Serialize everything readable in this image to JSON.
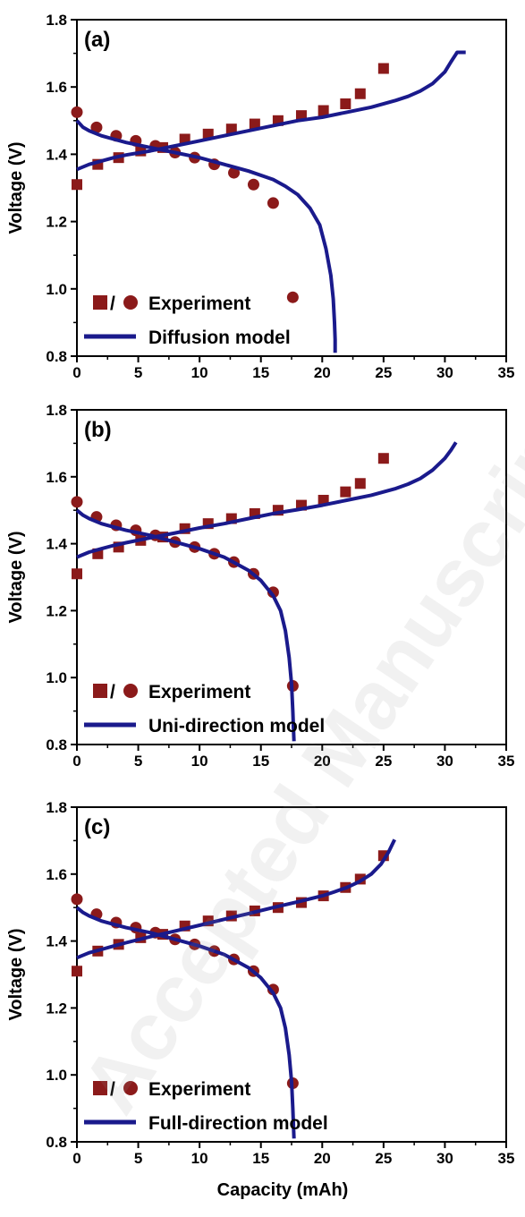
{
  "chart_data": [
    {
      "type": "scatter",
      "panel": "(a)",
      "xlim": [
        0,
        35
      ],
      "ylim": [
        0.8,
        1.8
      ],
      "xticks": [
        "0",
        "5",
        "10",
        "15",
        "20",
        "25",
        "30",
        "35"
      ],
      "yticks": [
        "0.8",
        "1.0",
        "1.2",
        "1.4",
        "1.6",
        "1.8"
      ],
      "ylabel": "Voltage (V)",
      "xlabel": "",
      "legend": {
        "placement": "bottom-left",
        "experiment_label": "Experiment",
        "model_label": "Diffusion model",
        "sep": "/"
      },
      "series": [
        {
          "kind": "exp-charge",
          "marker": "square",
          "color": "#8b1a1a",
          "x": [
            0,
            1.7,
            3.4,
            5.2,
            7.0,
            8.8,
            10.7,
            12.6,
            14.5,
            16.4,
            18.3,
            20.1,
            21.9,
            23.1,
            25.0
          ],
          "y": [
            1.31,
            1.37,
            1.39,
            1.41,
            1.42,
            1.445,
            1.46,
            1.475,
            1.49,
            1.5,
            1.515,
            1.53,
            1.55,
            1.58,
            1.655
          ]
        },
        {
          "kind": "exp-discharge",
          "marker": "circle",
          "color": "#8b1a1a",
          "x": [
            0,
            1.6,
            3.2,
            4.8,
            6.4,
            8.0,
            9.6,
            11.2,
            12.8,
            14.4,
            16.0,
            17.6
          ],
          "y": [
            1.525,
            1.48,
            1.455,
            1.44,
            1.425,
            1.405,
            1.39,
            1.37,
            1.345,
            1.31,
            1.255,
            0.975
          ]
        },
        {
          "kind": "model-charge",
          "color": "#1a1a8c",
          "x": [
            0,
            1,
            2,
            3,
            4,
            6,
            8,
            10,
            12,
            14,
            16,
            18,
            20,
            22,
            24,
            26,
            27,
            28,
            29,
            30,
            30.5,
            31,
            31.7
          ],
          "y": [
            1.355,
            1.37,
            1.38,
            1.39,
            1.398,
            1.41,
            1.425,
            1.44,
            1.455,
            1.47,
            1.485,
            1.5,
            1.51,
            1.525,
            1.54,
            1.56,
            1.572,
            1.588,
            1.61,
            1.645,
            1.675,
            1.703,
            1.703
          ]
        },
        {
          "kind": "model-discharge",
          "color": "#1a1a8c",
          "x": [
            0,
            0.5,
            1,
            2,
            3,
            4,
            6,
            8,
            10,
            12,
            14,
            16,
            17,
            18,
            19,
            19.8,
            20.3,
            20.7,
            20.9,
            21.0,
            21.05,
            21.05
          ],
          "y": [
            1.5,
            1.48,
            1.47,
            1.455,
            1.445,
            1.435,
            1.42,
            1.405,
            1.39,
            1.37,
            1.35,
            1.325,
            1.305,
            1.28,
            1.24,
            1.19,
            1.12,
            1.04,
            0.97,
            0.9,
            0.85,
            0.81
          ]
        }
      ]
    },
    {
      "type": "scatter",
      "panel": "(b)",
      "xlim": [
        0,
        35
      ],
      "ylim": [
        0.8,
        1.8
      ],
      "xticks": [
        "0",
        "5",
        "10",
        "15",
        "20",
        "25",
        "30",
        "35"
      ],
      "yticks": [
        "0.8",
        "1.0",
        "1.2",
        "1.4",
        "1.6",
        "1.8"
      ],
      "ylabel": "Voltage (V)",
      "xlabel": "",
      "legend": {
        "placement": "bottom-left",
        "experiment_label": "Experiment",
        "model_label": "Uni-direction model",
        "sep": "/"
      },
      "series": [
        {
          "kind": "exp-charge",
          "marker": "square",
          "color": "#8b1a1a",
          "x": [
            0,
            1.7,
            3.4,
            5.2,
            7.0,
            8.8,
            10.7,
            12.6,
            14.5,
            16.4,
            18.3,
            20.1,
            21.9,
            23.1,
            25.0
          ],
          "y": [
            1.31,
            1.37,
            1.39,
            1.41,
            1.42,
            1.445,
            1.46,
            1.475,
            1.49,
            1.5,
            1.515,
            1.53,
            1.555,
            1.58,
            1.655
          ]
        },
        {
          "kind": "exp-discharge",
          "marker": "circle",
          "color": "#8b1a1a",
          "x": [
            0,
            1.6,
            3.2,
            4.8,
            6.4,
            8.0,
            9.6,
            11.2,
            12.8,
            14.4,
            16.0,
            17.6
          ],
          "y": [
            1.525,
            1.48,
            1.455,
            1.44,
            1.425,
            1.405,
            1.39,
            1.37,
            1.345,
            1.31,
            1.255,
            0.975
          ]
        },
        {
          "kind": "model-charge",
          "color": "#1a1a8c",
          "x": [
            0,
            1,
            2,
            3,
            4,
            6,
            8,
            10,
            12,
            14,
            16,
            18,
            20,
            22,
            24,
            26,
            27,
            28,
            29,
            30,
            30.5,
            30.9
          ],
          "y": [
            1.36,
            1.375,
            1.385,
            1.395,
            1.403,
            1.418,
            1.432,
            1.447,
            1.46,
            1.475,
            1.49,
            1.502,
            1.515,
            1.53,
            1.545,
            1.565,
            1.578,
            1.595,
            1.62,
            1.655,
            1.68,
            1.703
          ]
        },
        {
          "kind": "model-discharge",
          "color": "#1a1a8c",
          "x": [
            0,
            0.5,
            1,
            2,
            3,
            4,
            6,
            8,
            10,
            12,
            14,
            15,
            16,
            16.6,
            17.0,
            17.3,
            17.5,
            17.6,
            17.65,
            17.7
          ],
          "y": [
            1.5,
            1.485,
            1.475,
            1.46,
            1.45,
            1.44,
            1.425,
            1.405,
            1.385,
            1.36,
            1.32,
            1.29,
            1.245,
            1.2,
            1.14,
            1.06,
            0.98,
            0.9,
            0.85,
            0.81
          ]
        }
      ]
    },
    {
      "type": "scatter",
      "panel": "(c)",
      "xlim": [
        0,
        35
      ],
      "ylim": [
        0.8,
        1.8
      ],
      "xticks": [
        "0",
        "5",
        "10",
        "15",
        "20",
        "25",
        "30",
        "35"
      ],
      "yticks": [
        "0.8",
        "1.0",
        "1.2",
        "1.4",
        "1.6",
        "1.8"
      ],
      "ylabel": "Voltage (V)",
      "xlabel": "Capacity (mAh)",
      "legend": {
        "placement": "bottom-left",
        "experiment_label": "Experiment",
        "model_label": "Full-direction model",
        "sep": "/"
      },
      "series": [
        {
          "kind": "exp-charge",
          "marker": "square",
          "color": "#8b1a1a",
          "x": [
            0,
            1.7,
            3.4,
            5.2,
            7.0,
            8.8,
            10.7,
            12.6,
            14.5,
            16.4,
            18.3,
            20.1,
            21.9,
            23.1,
            25.0
          ],
          "y": [
            1.31,
            1.37,
            1.39,
            1.41,
            1.42,
            1.445,
            1.46,
            1.475,
            1.49,
            1.5,
            1.515,
            1.535,
            1.56,
            1.585,
            1.655
          ]
        },
        {
          "kind": "exp-discharge",
          "marker": "circle",
          "color": "#8b1a1a",
          "x": [
            0,
            1.6,
            3.2,
            4.8,
            6.4,
            8.0,
            9.6,
            11.2,
            12.8,
            14.4,
            16.0,
            17.6
          ],
          "y": [
            1.525,
            1.48,
            1.455,
            1.44,
            1.425,
            1.405,
            1.39,
            1.37,
            1.345,
            1.31,
            1.255,
            0.975
          ]
        },
        {
          "kind": "model-charge",
          "color": "#1a1a8c",
          "x": [
            0,
            1,
            2,
            3,
            4,
            6,
            8,
            10,
            12,
            14,
            16,
            18,
            20,
            21,
            22,
            23,
            24,
            24.8,
            25.4,
            25.9
          ],
          "y": [
            1.35,
            1.365,
            1.375,
            1.385,
            1.395,
            1.413,
            1.43,
            1.447,
            1.465,
            1.482,
            1.5,
            1.517,
            1.535,
            1.547,
            1.56,
            1.577,
            1.6,
            1.63,
            1.665,
            1.703
          ]
        },
        {
          "kind": "model-discharge",
          "color": "#1a1a8c",
          "x": [
            0,
            0.5,
            1,
            2,
            3,
            4,
            6,
            8,
            10,
            12,
            14,
            15,
            16,
            16.6,
            17.0,
            17.3,
            17.5,
            17.6,
            17.65,
            17.7
          ],
          "y": [
            1.5,
            1.485,
            1.475,
            1.46,
            1.45,
            1.44,
            1.425,
            1.405,
            1.385,
            1.36,
            1.32,
            1.29,
            1.245,
            1.2,
            1.14,
            1.06,
            0.98,
            0.9,
            0.85,
            0.81
          ]
        }
      ]
    }
  ],
  "watermark": "Accepted Manuscript"
}
